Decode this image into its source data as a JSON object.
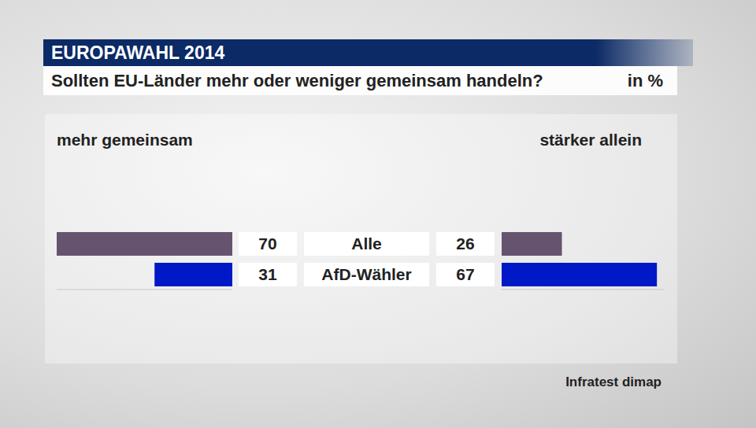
{
  "chart_data": {
    "type": "bar",
    "orientation": "horizontal",
    "title": "EUROPAWAHL 2014",
    "subtitle": "Sollten EU-Länder mehr oder weniger gemeinsam handeln?",
    "annotations": {
      "unit": "in %",
      "source": "Infratest dimap"
    },
    "categories": [
      "Alle",
      "AfD-Wähler"
    ],
    "series": [
      {
        "name": "mehr gemeinsam",
        "values": [
          70,
          31
        ],
        "colors": [
          "#66536f",
          "#0019c6"
        ]
      },
      {
        "name": "stärker allein",
        "values": [
          26,
          67
        ],
        "colors": [
          "#66536f",
          "#0019c6"
        ]
      }
    ],
    "xlim": [
      0,
      70
    ],
    "data_labels": true,
    "tick_labels": false
  }
}
